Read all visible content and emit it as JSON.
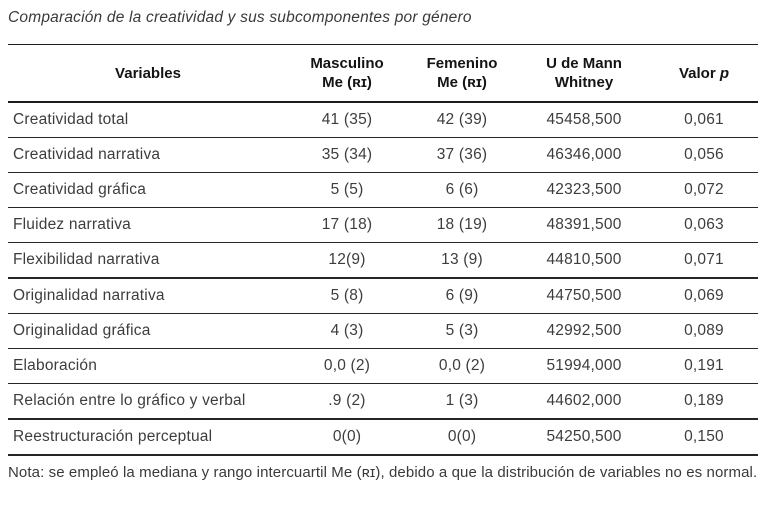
{
  "title": "Comparación de la creatividad y sus subcomponentes por género",
  "table": {
    "headers": {
      "variables": "Variables",
      "masculino_line1": "Masculino",
      "masculino_line2": "Me (ʀɪ)",
      "femenino_line1": "Femenino",
      "femenino_line2": "Me (ʀɪ)",
      "mann_whitney_line1": "U de Mann",
      "mann_whitney_line2": "Whitney",
      "valor_word": "Valor",
      "valor_symbol": "p"
    },
    "rows": [
      {
        "variable": "Creatividad total",
        "masculino": "41 (35)",
        "femenino": "42 (39)",
        "u_mann_whitney": "45458,500",
        "valor_p": "0,061"
      },
      {
        "variable": "Creatividad narrativa",
        "masculino": "35 (34)",
        "femenino": "37 (36)",
        "u_mann_whitney": "46346,000",
        "valor_p": "0,056"
      },
      {
        "variable": "Creatividad gráfica",
        "masculino": "5 (5)",
        "femenino": "6 (6)",
        "u_mann_whitney": "42323,500",
        "valor_p": "0,072"
      },
      {
        "variable": "Fluidez narrativa",
        "masculino": "17 (18)",
        "femenino": "18 (19)",
        "u_mann_whitney": "48391,500",
        "valor_p": "0,063"
      },
      {
        "variable": "Flexibilidad narrativa",
        "masculino": "12(9)",
        "femenino": "13 (9)",
        "u_mann_whitney": "44810,500",
        "valor_p": "0,071"
      },
      {
        "variable": "Originalidad narrativa",
        "masculino": "5 (8)",
        "femenino": "6 (9)",
        "u_mann_whitney": "44750,500",
        "valor_p": "0,069"
      },
      {
        "variable": "Originalidad gráfica",
        "masculino": "4 (3)",
        "femenino": "5 (3)",
        "u_mann_whitney": "42992,500",
        "valor_p": "0,089"
      },
      {
        "variable": "Elaboración",
        "masculino": "0,0 (2)",
        "femenino": "0,0 (2)",
        "u_mann_whitney": "51994,000",
        "valor_p": "0,191"
      },
      {
        "variable": "Relación entre lo gráfico y verbal",
        "masculino": ".9 (2)",
        "femenino": "1 (3)",
        "u_mann_whitney": "44602,000",
        "valor_p": "0,189"
      },
      {
        "variable": "Reestructuración perceptual",
        "masculino": "0(0)",
        "femenino": "0(0)",
        "u_mann_whitney": "54250,500",
        "valor_p": "0,150"
      }
    ]
  },
  "note": "Nota: se empleó la mediana y rango intercuartil Me (ʀɪ), debido a que la distribución de variables no es normal.",
  "colors": {
    "rule": "#1c1c1c",
    "text": "#3d3d3d",
    "heading": "#141414"
  }
}
